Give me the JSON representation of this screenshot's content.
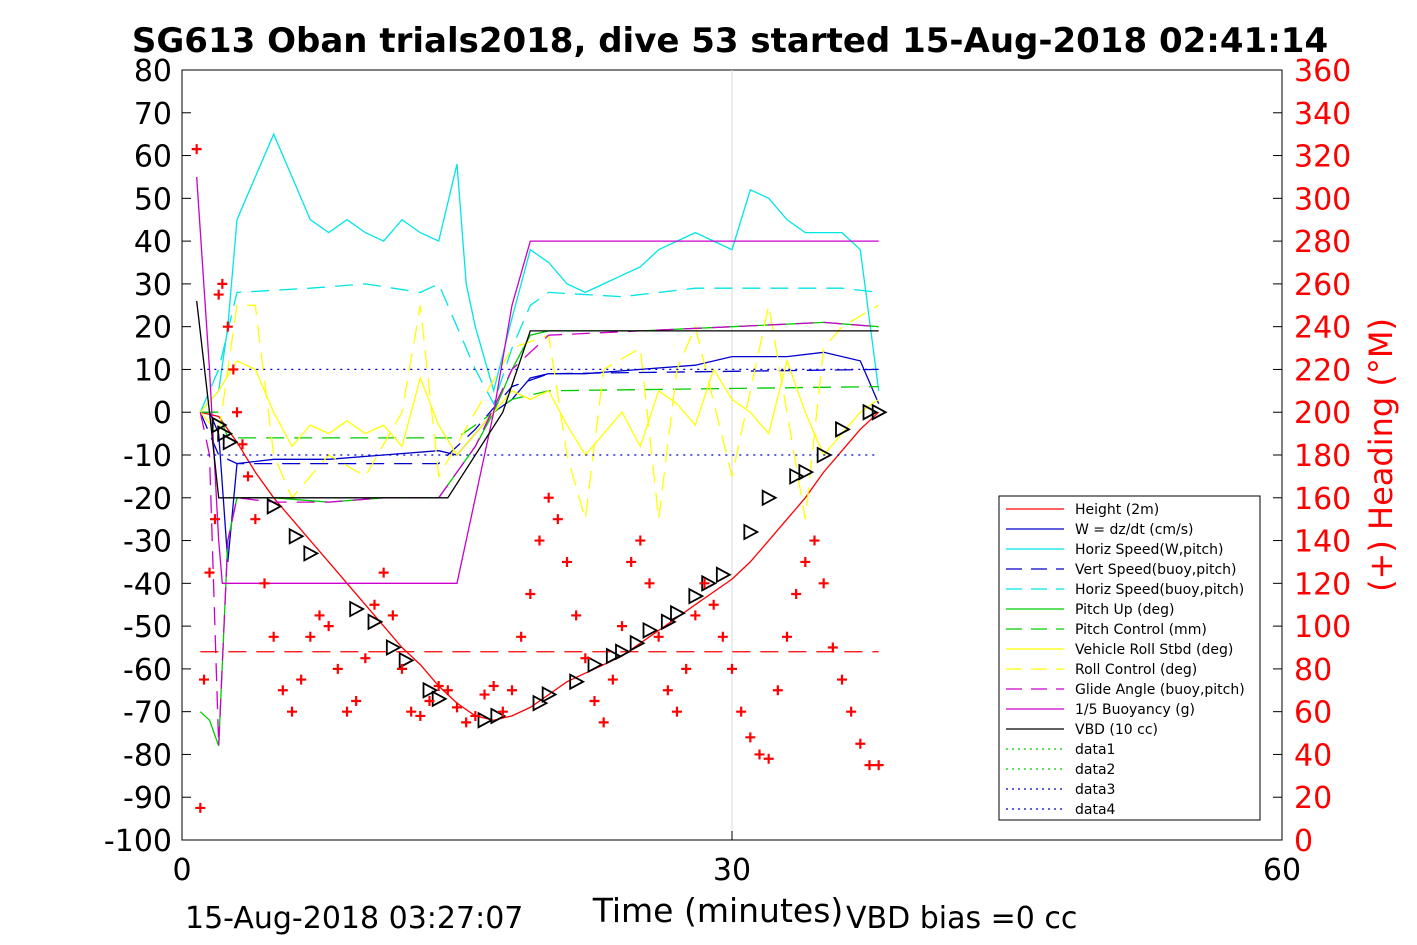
{
  "figure": {
    "title": "SG613 Oban trials2018, dive 53 started 15-Aug-2018 02:41:14",
    "footer_left": "15-Aug-2018 03:27:07",
    "footer_right": "VBD bias =0 cc",
    "xlabel": "Time (minutes)",
    "right_ylabel": "(+) Heading (°M)"
  },
  "chart_data": {
    "type": "line",
    "xlim": [
      0,
      60
    ],
    "ylim_left": [
      -100,
      80
    ],
    "ylim_right": [
      0,
      360
    ],
    "xticks": [
      0,
      30,
      60
    ],
    "yticks_left": [
      80,
      70,
      60,
      50,
      40,
      30,
      20,
      10,
      0,
      -10,
      -20,
      -30,
      -40,
      -50,
      -60,
      -70,
      -80,
      -90,
      -100
    ],
    "yticks_right": [
      360,
      340,
      320,
      300,
      280,
      260,
      240,
      220,
      200,
      180,
      160,
      140,
      120,
      100,
      80,
      60,
      40,
      20,
      0
    ],
    "grid": "major x only",
    "legend_position": "lower-right inside",
    "series": [
      {
        "name": "Height (2m)",
        "color": "#ff0000",
        "style": "solid",
        "x": [
          1.0,
          2.0,
          3.0,
          4.0,
          5.0,
          6.0,
          7.0,
          8.0,
          9.0,
          10.0,
          11.0,
          12.0,
          13.0,
          14.0,
          15.0,
          16.0,
          17.0,
          18.0,
          19.0,
          20.0,
          21.0,
          22.0,
          23.0,
          24.0,
          25.0,
          26.0,
          27.0,
          28.0,
          29.0,
          30.0,
          31.0,
          32.0,
          33.0,
          34.0,
          35.0,
          36.0,
          37.0,
          38.0
        ],
        "y": [
          0,
          -1,
          -7,
          -14,
          -20,
          -25,
          -30,
          -35,
          -40,
          -45,
          -50,
          -55,
          -59,
          -64,
          -68,
          -71,
          -72,
          -71,
          -69,
          -66,
          -63,
          -61,
          -59,
          -57,
          -54,
          -51,
          -48,
          -45,
          -42,
          -39,
          -35,
          -30,
          -25,
          -20,
          -14,
          -9,
          -4,
          0
        ]
      },
      {
        "name": "W = dz/dt (cm/s)",
        "color": "#0000cc",
        "style": "solid",
        "x": [
          1.0,
          1.5,
          2.0,
          2.5,
          3.0,
          5.0,
          8.0,
          11.0,
          14.0,
          15.0,
          16.0,
          17.0,
          18.0,
          19.0,
          20.0,
          22.0,
          25.0,
          28.0,
          30.0,
          33.0,
          35.0,
          37.0,
          38.0
        ],
        "y": [
          0,
          0,
          -5,
          -35,
          -12,
          -11,
          -11,
          -10,
          -9,
          -10,
          -5,
          0,
          3,
          8,
          9,
          9,
          10,
          11,
          13,
          13,
          14,
          12,
          2
        ]
      },
      {
        "name": "Horiz Speed(W,pitch)",
        "color": "#00e5e5",
        "style": "solid",
        "x": [
          1.0,
          2.0,
          2.5,
          3.0,
          4.0,
          5.0,
          6.0,
          7.0,
          8.0,
          9.0,
          10.0,
          11.0,
          12.0,
          13.0,
          14.0,
          15.0,
          15.5,
          16.0,
          17.0,
          18.0,
          19.0,
          20.0,
          21.0,
          22.0,
          23.0,
          24.0,
          25.0,
          26.0,
          27.0,
          28.0,
          29.0,
          30.0,
          31.0,
          32.0,
          33.0,
          34.0,
          35.0,
          36.0,
          37.0,
          38.0
        ],
        "y": [
          0,
          5,
          20,
          45,
          55,
          65,
          55,
          45,
          42,
          45,
          42,
          40,
          45,
          42,
          40,
          58,
          30,
          20,
          5,
          22,
          38,
          35,
          30,
          28,
          30,
          32,
          34,
          38,
          40,
          42,
          40,
          38,
          52,
          50,
          45,
          42,
          42,
          42,
          38,
          5
        ]
      },
      {
        "name": "Vert Speed(buoy,pitch)",
        "color": "#0000cc",
        "style": "dashed",
        "x": [
          1.0,
          2.0,
          3.0,
          14.0,
          16.0,
          18.0,
          20.0,
          38.0
        ],
        "y": [
          0,
          -10,
          -12,
          -12,
          -4,
          6,
          9,
          10
        ]
      },
      {
        "name": "Horiz Speed(buoy,pitch)",
        "color": "#00e5e5",
        "style": "dashed",
        "x": [
          1.0,
          2.0,
          3.0,
          7.0,
          10.0,
          13.0,
          14.0,
          15.0,
          16.0,
          17.0,
          18.0,
          19.0,
          20.0,
          24.0,
          28.0,
          32.0,
          36.0,
          38.0
        ],
        "y": [
          0,
          10,
          28,
          29,
          30,
          28,
          30,
          20,
          10,
          2,
          15,
          25,
          28,
          27,
          29,
          29,
          29,
          28
        ]
      },
      {
        "name": "Pitch Up (deg)",
        "color": "#00cc00",
        "style": "solid",
        "x": [
          1.0,
          1.5,
          2.0,
          2.5,
          3.0,
          5.0,
          8.0,
          11.0,
          14.0,
          15.0,
          16.0,
          17.0,
          18.0,
          19.0,
          20.0,
          25.0,
          30.0,
          35.0,
          38.0
        ],
        "y": [
          -70,
          -72,
          -78,
          -30,
          -20,
          -20,
          -21,
          -20,
          -20,
          -14,
          -8,
          0,
          10,
          18,
          19,
          19,
          20,
          21,
          20
        ]
      },
      {
        "name": "Pitch Control (mm)",
        "color": "#00cc00",
        "style": "dashed",
        "x": [
          1.0,
          2.0,
          2.5,
          14.0,
          15.0,
          18.0,
          20.0,
          38.0
        ],
        "y": [
          0,
          0,
          -6,
          -6,
          -6,
          3,
          5,
          6
        ]
      },
      {
        "name": "Vehicle Roll Stbd (deg)",
        "color": "#ffff00",
        "style": "solid",
        "x": [
          1.0,
          2.0,
          3.0,
          4.0,
          5.0,
          6.0,
          7.0,
          8.0,
          9.0,
          10.0,
          11.0,
          12.0,
          13.0,
          14.0,
          15.0,
          16.0,
          17.0,
          18.0,
          19.0,
          20.0,
          21.0,
          22.0,
          23.0,
          24.0,
          25.0,
          26.0,
          27.0,
          28.0,
          29.0,
          30.0,
          31.0,
          32.0,
          33.0,
          34.0,
          35.0,
          36.0,
          37.0,
          38.0
        ],
        "y": [
          0,
          5,
          12,
          10,
          0,
          -8,
          -3,
          -5,
          -2,
          -5,
          -3,
          -8,
          8,
          -3,
          -10,
          -5,
          0,
          5,
          3,
          5,
          -3,
          -10,
          -5,
          0,
          -8,
          5,
          2,
          -3,
          10,
          3,
          0,
          -5,
          12,
          0,
          -10,
          -5,
          0,
          3
        ]
      },
      {
        "name": "Roll Control (deg)",
        "color": "#ffff00",
        "style": "dashed",
        "x": [
          1.0,
          2.0,
          3.0,
          4.0,
          5.0,
          6.0,
          8.0,
          10.0,
          12.0,
          13.0,
          14.0,
          16.0,
          18.0,
          20.0,
          21.0,
          22.0,
          23.0,
          25.0,
          26.0,
          27.0,
          28.0,
          30.0,
          32.0,
          34.0,
          35.0,
          36.0,
          38.0
        ],
        "y": [
          0,
          -5,
          25,
          25,
          -10,
          -20,
          -10,
          -15,
          0,
          25,
          -15,
          0,
          15,
          18,
          -10,
          -25,
          10,
          15,
          -25,
          10,
          20,
          -15,
          25,
          -25,
          15,
          20,
          25
        ]
      },
      {
        "name": "Glide Angle (buoy,pitch)",
        "color": "#cc00cc",
        "style": "dashed",
        "x": [
          1.0,
          1.5,
          2.0,
          2.5,
          3.0,
          5.0,
          8.0,
          11.0,
          14.0,
          16.0,
          18.0,
          20.0,
          25.0,
          30.0,
          35.0,
          38.0
        ],
        "y": [
          0,
          -10,
          -78,
          -30,
          -20,
          -21,
          -21,
          -20,
          -20,
          -8,
          10,
          18,
          19,
          20,
          21,
          20
        ]
      },
      {
        "name": "1/5 Buoyancy (g)",
        "color": "#cc00cc",
        "style": "solid",
        "x": [
          0.8,
          1.5,
          2.0,
          2.2,
          14.5,
          15.0,
          17.0,
          18.0,
          19.0,
          38.0
        ],
        "y": [
          55,
          10,
          -30,
          -40,
          -40,
          -40,
          0,
          25,
          40,
          40
        ]
      },
      {
        "name": "VBD (10 cc)",
        "color": "#000000",
        "style": "solid",
        "x": [
          0.8,
          1.5,
          2.0,
          14.5,
          17.5,
          19.0,
          38.0
        ],
        "y": [
          26,
          0,
          -20,
          -20,
          0,
          19,
          19
        ]
      },
      {
        "name": "data1",
        "color": "#00cc00",
        "style": "dotted",
        "x": [],
        "y": []
      },
      {
        "name": "data2",
        "color": "#00cc00",
        "style": "dotted",
        "x": [],
        "y": []
      },
      {
        "name": "data3",
        "color": "#0000cc",
        "style": "dotted",
        "x": [
          1.0,
          38.0
        ],
        "y": [
          10,
          10
        ]
      },
      {
        "name": "data4",
        "color": "#0000cc",
        "style": "dotted",
        "x": [
          1.0,
          38.0
        ],
        "y": [
          -10,
          -10
        ]
      }
    ],
    "reference_line": {
      "color": "#ff0000",
      "style": "dashed",
      "y": -56,
      "x": [
        1.0,
        38.0
      ]
    },
    "heading_points": {
      "color": "#ff0000",
      "marker": "+",
      "axis": "right",
      "x": [
        0.8,
        1.0,
        1.2,
        1.5,
        1.8,
        2.0,
        2.2,
        2.5,
        2.8,
        3.0,
        3.3,
        3.6,
        4.0,
        4.5,
        5.0,
        5.5,
        6.0,
        6.5,
        7.0,
        7.5,
        8.0,
        8.5,
        9.0,
        9.5,
        10.0,
        10.5,
        11.0,
        11.5,
        12.0,
        12.5,
        13.0,
        13.5,
        14.0,
        14.5,
        15.0,
        15.5,
        16.0,
        16.5,
        17.0,
        17.5,
        18.0,
        18.5,
        19.0,
        19.5,
        20.0,
        20.5,
        21.0,
        21.5,
        22.0,
        22.5,
        23.0,
        23.5,
        24.0,
        24.5,
        25.0,
        25.5,
        26.0,
        26.5,
        27.0,
        27.5,
        28.0,
        28.5,
        29.0,
        29.5,
        30.0,
        30.5,
        31.0,
        31.5,
        32.0,
        32.5,
        33.0,
        33.5,
        34.0,
        34.5,
        35.0,
        35.5,
        36.0,
        36.5,
        37.0,
        37.5,
        38.0
      ],
      "y": [
        323,
        15,
        75,
        125,
        150,
        255,
        260,
        240,
        220,
        200,
        185,
        170,
        150,
        120,
        95,
        70,
        60,
        75,
        95,
        105,
        100,
        80,
        60,
        65,
        85,
        110,
        125,
        105,
        80,
        60,
        58,
        65,
        72,
        70,
        62,
        55,
        58,
        68,
        72,
        60,
        70,
        95,
        115,
        140,
        160,
        150,
        130,
        105,
        85,
        65,
        55,
        75,
        100,
        130,
        140,
        120,
        95,
        70,
        60,
        80,
        105,
        120,
        110,
        95,
        80,
        60,
        48,
        40,
        38,
        70,
        95,
        115,
        130,
        140,
        120,
        90,
        75,
        60,
        45,
        35,
        35
      ]
    },
    "triangle_markers": {
      "color": "#000000",
      "x": [
        2.0,
        2.3,
        2.6,
        5.0,
        6.2,
        7.0,
        9.5,
        10.5,
        11.5,
        12.2,
        13.5,
        14.0,
        16.5,
        17.2,
        19.5,
        20.0,
        21.5,
        22.5,
        23.5,
        24.0,
        24.8,
        25.5,
        26.5,
        27.0,
        28.0,
        28.7,
        29.5,
        31.0,
        32.0,
        33.5,
        34.0,
        35.0,
        36.0,
        37.5,
        38.0
      ],
      "y": [
        -3,
        -5,
        -7,
        -22,
        -29,
        -33,
        -46,
        -49,
        -55,
        -58,
        -65,
        -67,
        -72,
        -71,
        -68,
        -66,
        -63,
        -59,
        -57,
        -56,
        -54,
        -51,
        -49,
        -47,
        -43,
        -40,
        -38,
        -28,
        -20,
        -15,
        -14,
        -10,
        -4,
        0,
        0
      ]
    }
  }
}
